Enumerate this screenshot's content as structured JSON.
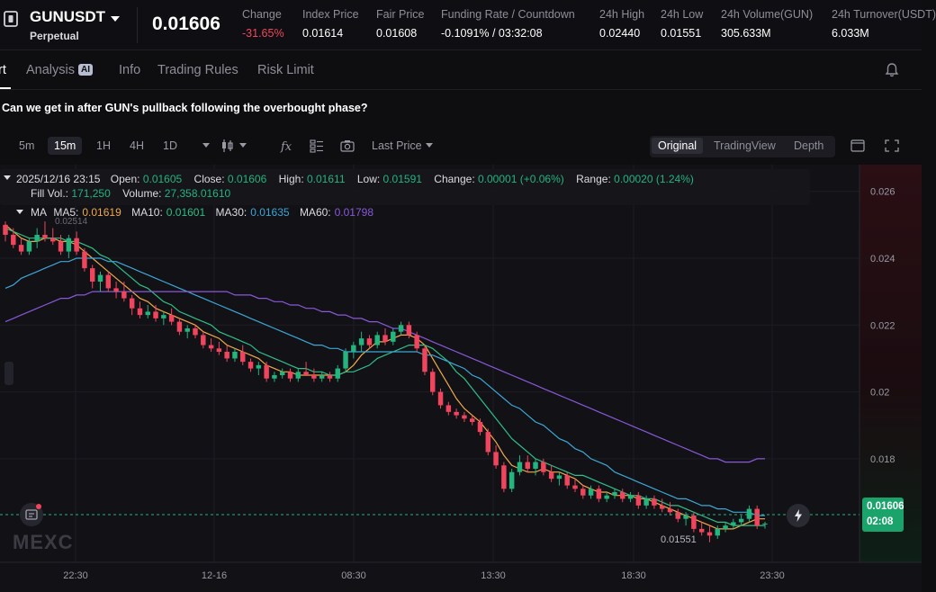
{
  "ticker": {
    "symbol": "GUNUSDT",
    "contract": "Perpetual",
    "last_price": "0.01606",
    "stats": [
      {
        "label": "Change",
        "value": "-31.65%",
        "neg": true
      },
      {
        "label": "Index Price",
        "value": "0.01614"
      },
      {
        "label": "Fair Price",
        "value": "0.01608"
      },
      {
        "label": "Funding Rate / Countdown",
        "value": "-0.1091% / 03:32:08"
      },
      {
        "label": "24h High",
        "value": "0.02440"
      },
      {
        "label": "24h Low",
        "value": "0.01551"
      },
      {
        "label": "24h Volume(GUN)",
        "value": "305.633M"
      },
      {
        "label": "24h Turnover(USDT)",
        "value": "6.033M"
      }
    ]
  },
  "tabs": {
    "chart_partial": "rt",
    "analysis": "Analysis",
    "analysis_badge": "AI",
    "info": "Info",
    "trading_rules": "Trading Rules",
    "risk_limit": "Risk Limit"
  },
  "headline": "Can we get in after GUN's pullback following the overbought phase?",
  "toolbar": {
    "intervals": [
      "5m",
      "15m",
      "1H",
      "4H",
      "1D"
    ],
    "active_interval": "15m",
    "price_type": "Last Price",
    "views": [
      "Original",
      "TradingView",
      "Depth"
    ],
    "active_view": "Original"
  },
  "ohlc": {
    "datetime": "2025/12/16 23:15",
    "open_label": "Open:",
    "open": "0.01605",
    "close_label": "Close:",
    "close": "0.01606",
    "high_label": "High:",
    "high": "0.01611",
    "low_label": "Low:",
    "low": "0.01591",
    "change_label": "Change:",
    "change": "0.00001 (+0.06%)",
    "range_label": "Range:",
    "range": "0.00020 (1.24%)",
    "fillvol_label": "Fill Vol.:",
    "fillvol": "171,250",
    "volume_label": "Volume:",
    "volume": "27,358.01610"
  },
  "ma_legend": {
    "title": "MA",
    "ma5_label": "MA5:",
    "ma5": "0.01619",
    "ma10_label": "MA10:",
    "ma10": "0.01601",
    "ma30_label": "MA30:",
    "ma30": "0.01635",
    "ma60_label": "MA60:",
    "ma60": "0.01798"
  },
  "colors": {
    "up": "#24b47e",
    "down": "#f0455c",
    "ma5": "#f0a94a",
    "ma10": "#2fbf87",
    "ma30": "#3ea7d6",
    "ma60": "#8a58d8",
    "grid": "#1d1d24"
  },
  "current_price_tag": {
    "price": "0.01606",
    "countdown": "02:08"
  },
  "watermark": "MEXC",
  "chart_data": {
    "type": "candlestick",
    "interval": "15m",
    "y_ticks": [
      "0.026",
      "0.024",
      "0.022",
      "0.02",
      "0.018"
    ],
    "ylim": [
      0.0149,
      0.0268
    ],
    "x_ticks": [
      "22:30",
      "12-16",
      "08:30",
      "13:30",
      "18:30",
      "23:30"
    ],
    "high_marker": "0.02514",
    "low_marker": "0.01551",
    "candles": [
      [
        0.025,
        0.0251,
        0.0245,
        0.0247
      ],
      [
        0.0247,
        0.0249,
        0.0243,
        0.0244
      ],
      [
        0.0244,
        0.0246,
        0.0241,
        0.0242
      ],
      [
        0.0242,
        0.0246,
        0.0241,
        0.0245
      ],
      [
        0.0245,
        0.0249,
        0.0243,
        0.0247
      ],
      [
        0.0247,
        0.0251,
        0.0245,
        0.0246
      ],
      [
        0.0246,
        0.0249,
        0.0244,
        0.0245
      ],
      [
        0.0245,
        0.0247,
        0.0241,
        0.0242
      ],
      [
        0.0242,
        0.0247,
        0.024,
        0.0246
      ],
      [
        0.0246,
        0.0248,
        0.0241,
        0.0242
      ],
      [
        0.0242,
        0.0243,
        0.0236,
        0.0237
      ],
      [
        0.0237,
        0.0238,
        0.0231,
        0.0233
      ],
      [
        0.0233,
        0.0236,
        0.023,
        0.0235
      ],
      [
        0.0235,
        0.0236,
        0.023,
        0.0231
      ],
      [
        0.0231,
        0.0233,
        0.0228,
        0.023
      ],
      [
        0.023,
        0.0233,
        0.0227,
        0.0228
      ],
      [
        0.0228,
        0.0229,
        0.0223,
        0.0225
      ],
      [
        0.0225,
        0.0227,
        0.0222,
        0.0223
      ],
      [
        0.0223,
        0.0226,
        0.0222,
        0.0224
      ],
      [
        0.0224,
        0.0226,
        0.0221,
        0.0222
      ],
      [
        0.0222,
        0.0224,
        0.022,
        0.0223
      ],
      [
        0.0223,
        0.0225,
        0.022,
        0.0221
      ],
      [
        0.0221,
        0.0222,
        0.0217,
        0.0218
      ],
      [
        0.0218,
        0.022,
        0.0216,
        0.0219
      ],
      [
        0.0219,
        0.022,
        0.0216,
        0.0217
      ],
      [
        0.0217,
        0.0218,
        0.0213,
        0.0214
      ],
      [
        0.0214,
        0.0216,
        0.0212,
        0.0213
      ],
      [
        0.0213,
        0.0215,
        0.0211,
        0.0212
      ],
      [
        0.0212,
        0.0214,
        0.0209,
        0.021
      ],
      [
        0.021,
        0.0213,
        0.0209,
        0.0212
      ],
      [
        0.0212,
        0.0214,
        0.0208,
        0.0209
      ],
      [
        0.0209,
        0.021,
        0.0206,
        0.0207
      ],
      [
        0.0207,
        0.0209,
        0.0205,
        0.0208
      ],
      [
        0.0208,
        0.0209,
        0.0203,
        0.0204
      ],
      [
        0.0204,
        0.0206,
        0.0203,
        0.0205
      ],
      [
        0.0205,
        0.0207,
        0.0204,
        0.0206
      ],
      [
        0.0206,
        0.0207,
        0.0203,
        0.0204
      ],
      [
        0.0204,
        0.0207,
        0.0203,
        0.0206
      ],
      [
        0.0206,
        0.0209,
        0.0205,
        0.0205
      ],
      [
        0.0205,
        0.0207,
        0.0203,
        0.0204
      ],
      [
        0.0204,
        0.0206,
        0.0203,
        0.0205
      ],
      [
        0.0205,
        0.0206,
        0.0203,
        0.0204
      ],
      [
        0.0204,
        0.0208,
        0.0203,
        0.0207
      ],
      [
        0.0207,
        0.0213,
        0.0206,
        0.0212
      ],
      [
        0.0212,
        0.0215,
        0.021,
        0.0214
      ],
      [
        0.0214,
        0.0218,
        0.0212,
        0.0216
      ],
      [
        0.0216,
        0.0217,
        0.0213,
        0.0214
      ],
      [
        0.0214,
        0.0218,
        0.0213,
        0.0217
      ],
      [
        0.0217,
        0.0219,
        0.0214,
        0.0215
      ],
      [
        0.0215,
        0.0219,
        0.0214,
        0.0218
      ],
      [
        0.0218,
        0.0221,
        0.0217,
        0.022
      ],
      [
        0.022,
        0.0221,
        0.0216,
        0.0217
      ],
      [
        0.0217,
        0.0218,
        0.0212,
        0.0213
      ],
      [
        0.0213,
        0.0214,
        0.0205,
        0.0206
      ],
      [
        0.0206,
        0.0207,
        0.0199,
        0.02
      ],
      [
        0.02,
        0.0201,
        0.0195,
        0.0196
      ],
      [
        0.0196,
        0.0197,
        0.0193,
        0.0194
      ],
      [
        0.0194,
        0.0195,
        0.0192,
        0.0193
      ],
      [
        0.0193,
        0.0194,
        0.0191,
        0.0192
      ],
      [
        0.0192,
        0.0193,
        0.019,
        0.0191
      ],
      [
        0.0191,
        0.0192,
        0.0187,
        0.0188
      ],
      [
        0.0188,
        0.0189,
        0.0181,
        0.0182
      ],
      [
        0.0182,
        0.0184,
        0.0177,
        0.0178
      ],
      [
        0.0178,
        0.0179,
        0.017,
        0.0171
      ],
      [
        0.0171,
        0.0177,
        0.017,
        0.0176
      ],
      [
        0.0176,
        0.0181,
        0.0175,
        0.0179
      ],
      [
        0.0179,
        0.0181,
        0.0176,
        0.0177
      ],
      [
        0.0177,
        0.018,
        0.0175,
        0.0179
      ],
      [
        0.0179,
        0.018,
        0.0175,
        0.0176
      ],
      [
        0.0176,
        0.0178,
        0.0173,
        0.0174
      ],
      [
        0.0174,
        0.0176,
        0.0172,
        0.0175
      ],
      [
        0.0175,
        0.0176,
        0.0171,
        0.0172
      ],
      [
        0.0172,
        0.0174,
        0.017,
        0.0171
      ],
      [
        0.0171,
        0.0172,
        0.0168,
        0.0169
      ],
      [
        0.0169,
        0.0172,
        0.0168,
        0.0171
      ],
      [
        0.0171,
        0.0172,
        0.0167,
        0.0168
      ],
      [
        0.0168,
        0.017,
        0.0167,
        0.0169
      ],
      [
        0.0169,
        0.0171,
        0.0168,
        0.017
      ],
      [
        0.017,
        0.0171,
        0.0167,
        0.0168
      ],
      [
        0.0168,
        0.017,
        0.0167,
        0.0169
      ],
      [
        0.0169,
        0.017,
        0.0165,
        0.0166
      ],
      [
        0.0166,
        0.0169,
        0.0165,
        0.0168
      ],
      [
        0.0168,
        0.0169,
        0.0165,
        0.0166
      ],
      [
        0.0166,
        0.0168,
        0.0164,
        0.0165
      ],
      [
        0.0165,
        0.0167,
        0.0163,
        0.0164
      ],
      [
        0.0164,
        0.0165,
        0.0161,
        0.0162
      ],
      [
        0.0162,
        0.0164,
        0.016,
        0.0163
      ],
      [
        0.0163,
        0.0164,
        0.0158,
        0.0159
      ],
      [
        0.0159,
        0.0161,
        0.0157,
        0.0158
      ],
      [
        0.0158,
        0.016,
        0.0155,
        0.0157
      ],
      [
        0.0157,
        0.016,
        0.0156,
        0.0159
      ],
      [
        0.0159,
        0.0161,
        0.0158,
        0.016
      ],
      [
        0.016,
        0.0162,
        0.0159,
        0.0161
      ],
      [
        0.0161,
        0.0163,
        0.016,
        0.0162
      ],
      [
        0.0162,
        0.0166,
        0.0161,
        0.0165
      ],
      [
        0.0165,
        0.0166,
        0.0159,
        0.016
      ],
      [
        0.01605,
        0.01611,
        0.01591,
        0.01606
      ]
    ],
    "ma_series": [
      {
        "name": "MA5",
        "values": [
          0.025,
          0.0248,
          0.0246,
          0.0245,
          0.0245,
          0.0246,
          0.0246,
          0.0245,
          0.0245,
          0.0244,
          0.0242,
          0.024,
          0.0238,
          0.0236,
          0.0234,
          0.0232,
          0.023,
          0.0228,
          0.0227,
          0.0225,
          0.0224,
          0.0223,
          0.0222,
          0.0221,
          0.022,
          0.0218,
          0.0217,
          0.0216,
          0.0214,
          0.0213,
          0.0212,
          0.0211,
          0.021,
          0.0208,
          0.0207,
          0.0206,
          0.0206,
          0.0205,
          0.0205,
          0.0205,
          0.0205,
          0.0205,
          0.0205,
          0.0206,
          0.0208,
          0.0211,
          0.0213,
          0.0215,
          0.0215,
          0.0216,
          0.0217,
          0.0217,
          0.0216,
          0.0214,
          0.021,
          0.0206,
          0.0202,
          0.0198,
          0.0195,
          0.0193,
          0.0191,
          0.0188,
          0.0185,
          0.0181,
          0.0178,
          0.0177,
          0.0176,
          0.0176,
          0.0177,
          0.0176,
          0.0176,
          0.0175,
          0.0174,
          0.0172,
          0.0171,
          0.017,
          0.017,
          0.0169,
          0.0169,
          0.0169,
          0.0168,
          0.0168,
          0.0167,
          0.0166,
          0.0165,
          0.0164,
          0.0163,
          0.0162,
          0.0161,
          0.016,
          0.0159,
          0.0159,
          0.0159,
          0.016,
          0.0161,
          0.0162,
          0.0162
        ]
      },
      {
        "name": "MA10",
        "values": [
          0.0249,
          0.0248,
          0.0247,
          0.0246,
          0.0246,
          0.0246,
          0.0246,
          0.0246,
          0.0245,
          0.0245,
          0.0244,
          0.0243,
          0.0241,
          0.024,
          0.0238,
          0.0236,
          0.0234,
          0.0232,
          0.0231,
          0.0229,
          0.0227,
          0.0226,
          0.0224,
          0.0223,
          0.0222,
          0.0221,
          0.022,
          0.0218,
          0.0217,
          0.0216,
          0.0215,
          0.0214,
          0.0212,
          0.0211,
          0.021,
          0.0209,
          0.0208,
          0.0207,
          0.0207,
          0.0206,
          0.0206,
          0.0205,
          0.0205,
          0.0206,
          0.0206,
          0.0207,
          0.0208,
          0.021,
          0.0211,
          0.0212,
          0.0213,
          0.0214,
          0.0214,
          0.0214,
          0.0213,
          0.0211,
          0.0209,
          0.0206,
          0.0204,
          0.0201,
          0.0198,
          0.0195,
          0.0192,
          0.0189,
          0.0186,
          0.0184,
          0.0182,
          0.018,
          0.0179,
          0.0178,
          0.0177,
          0.0176,
          0.0175,
          0.0175,
          0.0174,
          0.0173,
          0.0172,
          0.0171,
          0.017,
          0.0169,
          0.0169,
          0.0168,
          0.0168,
          0.0167,
          0.0166,
          0.0166,
          0.0165,
          0.0164,
          0.0163,
          0.0162,
          0.0161,
          0.0161,
          0.016,
          0.016,
          0.016,
          0.016,
          0.016
        ]
      },
      {
        "name": "MA30",
        "values": [
          0.0231,
          0.0232,
          0.0234,
          0.0235,
          0.0236,
          0.0237,
          0.0238,
          0.0239,
          0.0239,
          0.024,
          0.024,
          0.024,
          0.024,
          0.0239,
          0.0239,
          0.0238,
          0.0237,
          0.0236,
          0.0235,
          0.0234,
          0.0233,
          0.0232,
          0.0231,
          0.023,
          0.0229,
          0.0228,
          0.0227,
          0.0226,
          0.0225,
          0.0224,
          0.0223,
          0.0222,
          0.0221,
          0.022,
          0.0219,
          0.0218,
          0.0217,
          0.0216,
          0.0215,
          0.0214,
          0.0214,
          0.0213,
          0.0213,
          0.0212,
          0.0212,
          0.0212,
          0.0212,
          0.0212,
          0.0212,
          0.0212,
          0.0212,
          0.0212,
          0.0212,
          0.0211,
          0.0211,
          0.021,
          0.0209,
          0.0208,
          0.0207,
          0.0205,
          0.0204,
          0.0202,
          0.02,
          0.0198,
          0.0196,
          0.0195,
          0.0193,
          0.0191,
          0.019,
          0.0188,
          0.0186,
          0.0185,
          0.0183,
          0.0182,
          0.018,
          0.0179,
          0.0178,
          0.0176,
          0.0175,
          0.0174,
          0.0173,
          0.0172,
          0.0171,
          0.017,
          0.0169,
          0.0168,
          0.0168,
          0.0167,
          0.0166,
          0.0166,
          0.0165,
          0.0165,
          0.0164,
          0.0164,
          0.0164,
          0.0163,
          0.0163
        ]
      },
      {
        "name": "MA60",
        "values": [
          0.0221,
          0.0222,
          0.0223,
          0.0224,
          0.0225,
          0.0226,
          0.0227,
          0.0228,
          0.0228,
          0.0229,
          0.0229,
          0.023,
          0.023,
          0.023,
          0.023,
          0.023,
          0.023,
          0.023,
          0.023,
          0.023,
          0.023,
          0.023,
          0.023,
          0.023,
          0.023,
          0.023,
          0.023,
          0.023,
          0.023,
          0.0229,
          0.0229,
          0.0229,
          0.0228,
          0.0228,
          0.0227,
          0.0227,
          0.0226,
          0.0226,
          0.0225,
          0.0225,
          0.0224,
          0.0224,
          0.0223,
          0.0223,
          0.0222,
          0.0222,
          0.0221,
          0.0221,
          0.022,
          0.0219,
          0.0219,
          0.0218,
          0.0217,
          0.0216,
          0.0215,
          0.0214,
          0.0213,
          0.0212,
          0.0211,
          0.021,
          0.0209,
          0.0208,
          0.0207,
          0.0206,
          0.0205,
          0.0204,
          0.0203,
          0.0202,
          0.0201,
          0.02,
          0.0199,
          0.0198,
          0.0197,
          0.0196,
          0.0195,
          0.0194,
          0.0193,
          0.0192,
          0.0191,
          0.019,
          0.0189,
          0.0188,
          0.0187,
          0.0186,
          0.0185,
          0.0184,
          0.0183,
          0.0182,
          0.0181,
          0.018,
          0.018,
          0.0179,
          0.0179,
          0.0179,
          0.0179,
          0.018,
          0.018
        ]
      }
    ]
  }
}
